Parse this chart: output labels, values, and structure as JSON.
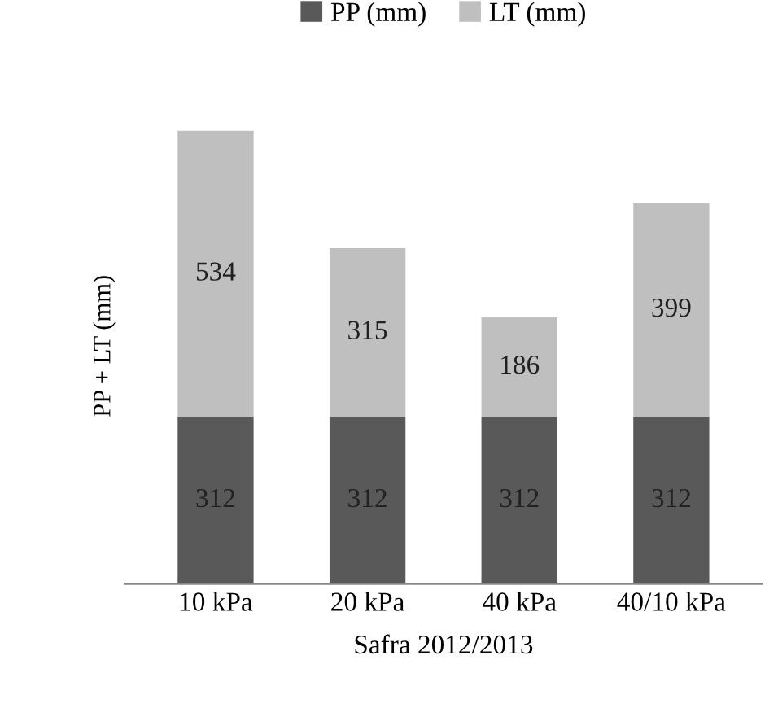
{
  "chart_data": {
    "type": "bar",
    "stacked": true,
    "categories": [
      "10 kPa",
      "20 kPa",
      "40 kPa",
      "40/10 kPa"
    ],
    "series": [
      {
        "name": "PP (mm)",
        "color": "#595959",
        "values": [
          312,
          312,
          312,
          312
        ]
      },
      {
        "name": "LT (mm)",
        "color": "#bfbfbf",
        "values": [
          534,
          315,
          186,
          399
        ]
      }
    ],
    "ylabel": "PP + LT (mm)",
    "xlabel": "Safra 2012/2013",
    "tick_labels": "x",
    "data_labels": true,
    "legend": "top",
    "grid": false
  }
}
